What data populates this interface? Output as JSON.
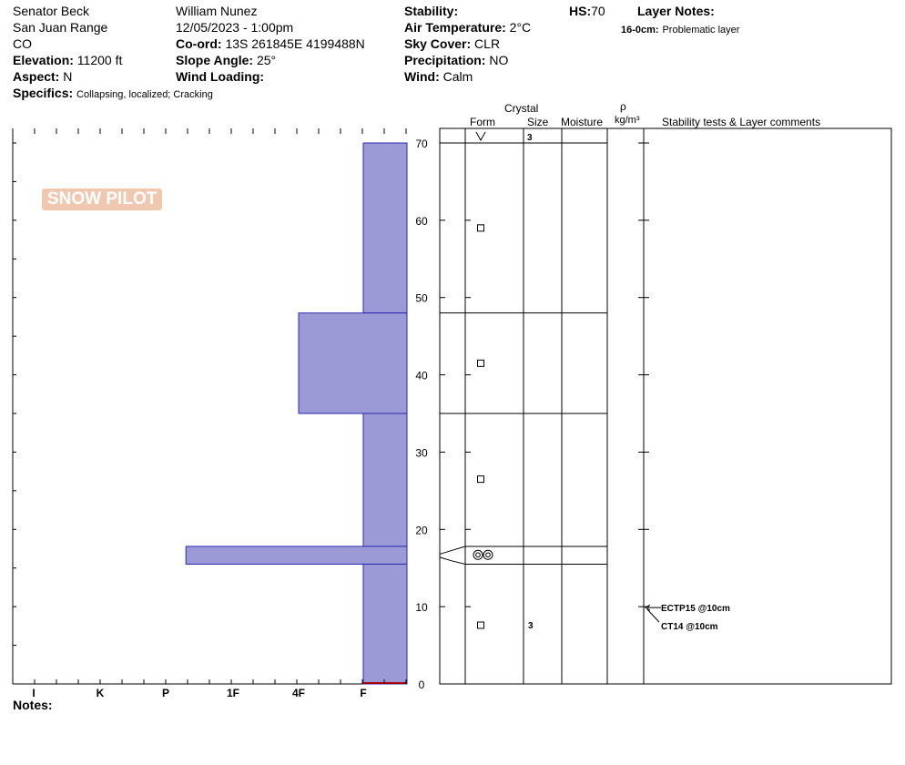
{
  "header": {
    "location": "Senator Beck",
    "range": "San Juan Range",
    "state": "CO",
    "elevation_label": "Elevation:",
    "elevation": "11200 ft",
    "aspect_label": "Aspect:",
    "aspect": "N",
    "specifics_label": "Specifics:",
    "specifics": "Collapsing, localized;  Cracking",
    "observer": "William Nunez",
    "datetime": "12/05/2023 - 1:00pm",
    "coord_label": "Co-ord:",
    "coord": "13S 261845E 4199488N",
    "slope_label": "Slope Angle:",
    "slope": "25°",
    "wind_loading_label": "Wind Loading:",
    "wind_loading": "",
    "stability_label": "Stability:",
    "stability": "",
    "air_temp_label": "Air Temperature:",
    "air_temp": "2°C",
    "sky_label": "Sky Cover:",
    "sky": "CLR",
    "precip_label": "Precipitation:",
    "precip": "NO",
    "wind_label": "Wind:",
    "wind": "Calm",
    "hs_label": "HS:",
    "hs": "70",
    "layer_notes_label": "Layer Notes:",
    "layer_note_depth": "16-0cm:",
    "layer_note_text": "Problematic layer"
  },
  "logo": {
    "text": "SNOW PILOT"
  },
  "notes_label": "Notes:",
  "table_headers": {
    "crystal": "Crystal",
    "form": "Form",
    "size": "Size",
    "moisture": "Moisture",
    "rho": "ρ",
    "density_unit": "kg/m³",
    "comments": "Stability tests & Layer comments"
  },
  "chart_data": {
    "type": "snow-profile",
    "hand_hardness_scale": [
      "I",
      "K",
      "P",
      "1F",
      "4F",
      "F"
    ],
    "depth_axis": {
      "min": 0,
      "max": 70,
      "ticks": [
        0,
        10,
        20,
        30,
        40,
        50,
        60,
        70
      ],
      "unit": "cm"
    },
    "layers": [
      {
        "top": 70,
        "bottom": 48,
        "hardness": "F",
        "form": "square",
        "size": ""
      },
      {
        "top": 48,
        "bottom": 35,
        "hardness": "4F",
        "form": "square",
        "size": ""
      },
      {
        "top": 35,
        "bottom": 17.8,
        "hardness": "F",
        "form": "square",
        "size": ""
      },
      {
        "top": 17.8,
        "bottom": 15.5,
        "hardness": "1F-",
        "hardness_value": 2.3,
        "form": "surface-hoar",
        "size": ""
      },
      {
        "top": 15.5,
        "bottom": 0,
        "hardness": "F",
        "form": "square",
        "size": "3"
      }
    ],
    "surface_layer": {
      "form": "v",
      "size": "3"
    },
    "stability_tests": [
      {
        "label": "ECTP15 @10cm",
        "depth": 10
      },
      {
        "label": "CT14 @10cm",
        "depth": 10
      }
    ],
    "colors": {
      "fill": "#9b9ad6",
      "edge": "#2b2ab0",
      "ground": "#aa0000"
    }
  }
}
